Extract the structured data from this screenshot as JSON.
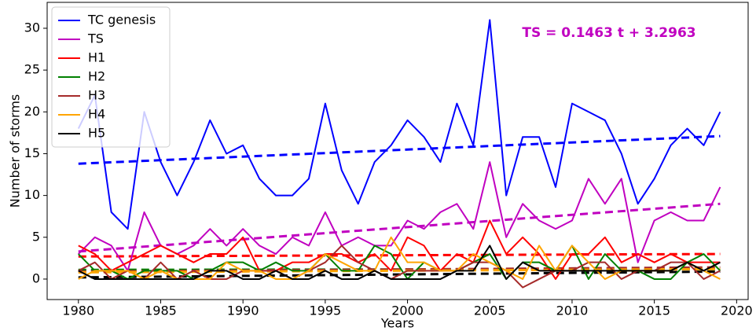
{
  "chart_data": {
    "type": "line",
    "x_label": "Years",
    "y_label": "Number of storms",
    "annotation": "TS = 0.1463 t + 3.2963",
    "annotation_color": "#c000c0",
    "x": [
      1980,
      1981,
      1982,
      1983,
      1984,
      1985,
      1986,
      1987,
      1988,
      1989,
      1990,
      1991,
      1992,
      1993,
      1994,
      1995,
      1996,
      1997,
      1998,
      1999,
      2000,
      2001,
      2002,
      2003,
      2004,
      2005,
      2006,
      2007,
      2008,
      2009,
      2010,
      2011,
      2012,
      2013,
      2014,
      2015,
      2016,
      2017,
      2018,
      2019
    ],
    "series": [
      {
        "name": "TC genesis",
        "color": "#0000ff",
        "values": [
          18,
          22,
          8,
          6,
          20,
          14,
          10,
          14,
          19,
          15,
          16,
          12,
          10,
          10,
          12,
          21,
          13,
          9,
          14,
          16,
          19,
          17,
          14,
          21,
          16,
          31,
          10,
          17,
          17,
          11,
          21,
          20,
          19,
          15,
          9,
          12,
          16,
          18,
          16,
          20
        ]
      },
      {
        "name": "TS",
        "color": "#c000c0",
        "values": [
          3,
          5,
          4,
          1,
          8,
          4,
          3,
          4,
          6,
          4,
          6,
          4,
          3,
          5,
          4,
          8,
          4,
          5,
          4,
          4,
          7,
          6,
          8,
          9,
          6,
          14,
          5,
          9,
          7,
          6,
          7,
          12,
          9,
          12,
          2,
          7,
          8,
          7,
          7,
          11
        ]
      },
      {
        "name": "H1",
        "color": "#ff0000",
        "values": [
          4,
          3,
          1,
          2,
          3,
          4,
          3,
          2,
          3,
          3,
          5,
          1,
          1,
          2,
          2,
          3,
          3,
          2,
          3,
          1,
          5,
          4,
          1,
          3,
          2,
          7,
          3,
          5,
          3,
          0,
          3,
          3,
          5,
          2,
          3,
          2,
          3,
          2,
          2,
          2
        ]
      },
      {
        "name": "H2",
        "color": "#008000",
        "values": [
          3,
          1,
          1,
          0,
          1,
          1,
          1,
          0,
          1,
          2,
          2,
          1,
          2,
          1,
          1,
          3,
          1,
          1,
          4,
          3,
          0,
          2,
          1,
          1,
          2,
          3,
          0,
          2,
          2,
          1,
          4,
          0,
          3,
          1,
          1,
          0,
          0,
          2,
          3,
          1
        ]
      },
      {
        "name": "H3",
        "color": "#a52a2a",
        "values": [
          1,
          2,
          0,
          1,
          0,
          2,
          0,
          1,
          0,
          0,
          1,
          1,
          1,
          0,
          1,
          2,
          4,
          2,
          1,
          0,
          1,
          1,
          1,
          1,
          2,
          2,
          1,
          -1,
          0,
          1,
          1,
          2,
          2,
          0,
          1,
          1,
          2,
          2,
          0,
          1
        ]
      },
      {
        "name": "H4",
        "color": "#ffa500",
        "values": [
          0,
          1,
          1,
          1,
          0,
          1,
          0,
          0,
          0,
          2,
          1,
          1,
          0,
          0,
          1,
          3,
          2,
          1,
          1,
          5,
          2,
          2,
          1,
          1,
          3,
          2,
          1,
          0,
          4,
          1,
          4,
          2,
          0,
          1,
          1,
          1,
          1,
          2,
          1,
          0
        ]
      },
      {
        "name": "H5",
        "color": "#000000",
        "values": [
          1,
          0,
          0,
          0,
          0,
          0,
          0,
          0,
          1,
          1,
          0,
          0,
          1,
          0,
          0,
          1,
          0,
          0,
          1,
          0,
          0,
          0,
          0,
          1,
          1,
          4,
          0,
          2,
          1,
          1,
          1,
          1,
          1,
          1,
          1,
          1,
          1,
          2,
          1,
          2
        ]
      }
    ],
    "trend_lines": [
      {
        "color": "#0000ff",
        "x": [
          1980,
          2019
        ],
        "values": [
          13.8,
          17.1
        ]
      },
      {
        "color": "#c000c0",
        "x": [
          1980,
          2019
        ],
        "values": [
          3.3,
          9.0
        ]
      },
      {
        "color": "#ff0000",
        "x": [
          1980,
          2019
        ],
        "values": [
          2.7,
          3.0
        ]
      },
      {
        "color": "#008000",
        "x": [
          1980,
          2019
        ],
        "values": [
          1.1,
          1.2
        ]
      },
      {
        "color": "#a52a2a",
        "x": [
          1980,
          2019
        ],
        "values": [
          0.9,
          1.4
        ]
      },
      {
        "color": "#ffa500",
        "x": [
          1980,
          2019
        ],
        "values": [
          0.8,
          1.2
        ]
      },
      {
        "color": "#000000",
        "x": [
          1980,
          2019
        ],
        "values": [
          0.2,
          0.9
        ]
      }
    ],
    "xlim": [
      1978.1,
      2020.7
    ],
    "ylim": [
      -2.45,
      33.1
    ],
    "xticks": [
      1980,
      1985,
      1990,
      1995,
      2000,
      2005,
      2010,
      2015,
      2020
    ],
    "yticks": [
      0,
      5,
      10,
      15,
      20,
      25,
      30
    ],
    "legend": "upper left",
    "grid": false
  }
}
